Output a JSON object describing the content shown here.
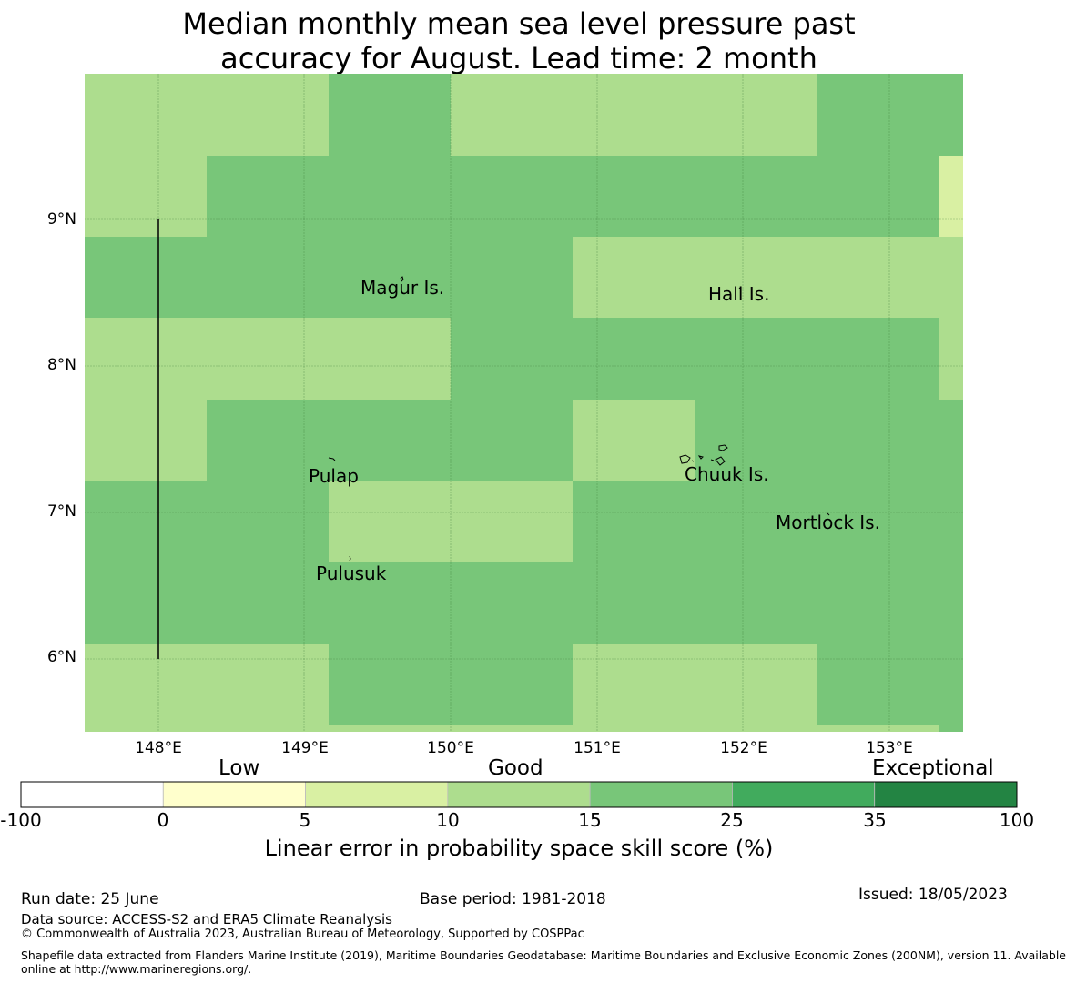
{
  "title": {
    "line1": "Median monthly mean sea level pressure past",
    "line2": "accuracy for August. Lead time: 2 month"
  },
  "map": {
    "lat_ticks": [
      "9°N",
      "8°N",
      "7°N",
      "6°N"
    ],
    "lon_ticks": [
      "148°E",
      "149°E",
      "150°E",
      "151°E",
      "152°E",
      "153°E"
    ],
    "islands": [
      {
        "name": "Magur Is."
      },
      {
        "name": "Hall Is."
      },
      {
        "name": "Pulap"
      },
      {
        "name": "Chuuk Is."
      },
      {
        "name": "Mortlock Is."
      },
      {
        "name": "Pulusuk"
      }
    ],
    "bins": {
      "5-10": "#d9f0a3",
      "10-15": "#addd8e",
      "15-25": "#78c679"
    }
  },
  "legend": {
    "categories": [
      "Low",
      "Good",
      "Exceptional"
    ],
    "ticks": [
      "-100",
      "0",
      "5",
      "10",
      "15",
      "25",
      "35",
      "100"
    ],
    "colors": [
      "#ffffff",
      "#ffffcc",
      "#d9f0a3",
      "#addd8e",
      "#78c679",
      "#41ab5d",
      "#238443"
    ],
    "title": "Linear error in probability space skill score (%)"
  },
  "footer": {
    "run_date": "Run date: 25 June",
    "base_period": "Base period: 1981-2018",
    "issued": "Issued: 18/05/2023",
    "data_source": "Data source: ACCESS-S2 and ERA5 Climate Reanalysis",
    "copyright": "© Commonwealth of Australia 2023, Australian Bureau of Meteorology, Supported by COSPPac",
    "shapefile_line1": "Shapefile data extracted from Flanders Marine Institute (2019), Maritime Boundaries Geodatabase: Maritime Boundaries and Exclusive Economic Zones (200NM), version 11. Available",
    "shapefile_line2": "online at http://www.marineregions.org/."
  }
}
